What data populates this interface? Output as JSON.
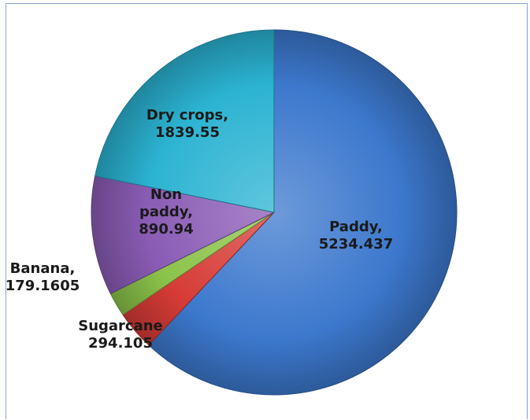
{
  "chart_data": {
    "type": "pie",
    "title": "",
    "slices": [
      {
        "name": "Paddy",
        "value": 5234.437,
        "label_lines": [
          "Paddy,",
          "5234.437"
        ],
        "color": "#3c78cd"
      },
      {
        "name": "Sugarcane",
        "value": 294.105,
        "label_lines": [
          "Sugarcane",
          "294.105"
        ],
        "color": "#d63b36"
      },
      {
        "name": "Banana",
        "value": 179.1605,
        "label_lines": [
          "Banana,",
          "179.1605"
        ],
        "color": "#8bc34a"
      },
      {
        "name": "Non paddy",
        "value": 890.94,
        "label_lines": [
          "Non",
          "paddy,",
          "890.94"
        ],
        "color": "#8a5cb5"
      },
      {
        "name": "Dry crops",
        "value": 1839.55,
        "label_lines": [
          "Dry crops,",
          "1839.55"
        ],
        "color": "#2bb3d2"
      }
    ],
    "start_angle_deg": 0,
    "direction": "clockwise",
    "legend": "none",
    "style": "3d-gradient"
  }
}
